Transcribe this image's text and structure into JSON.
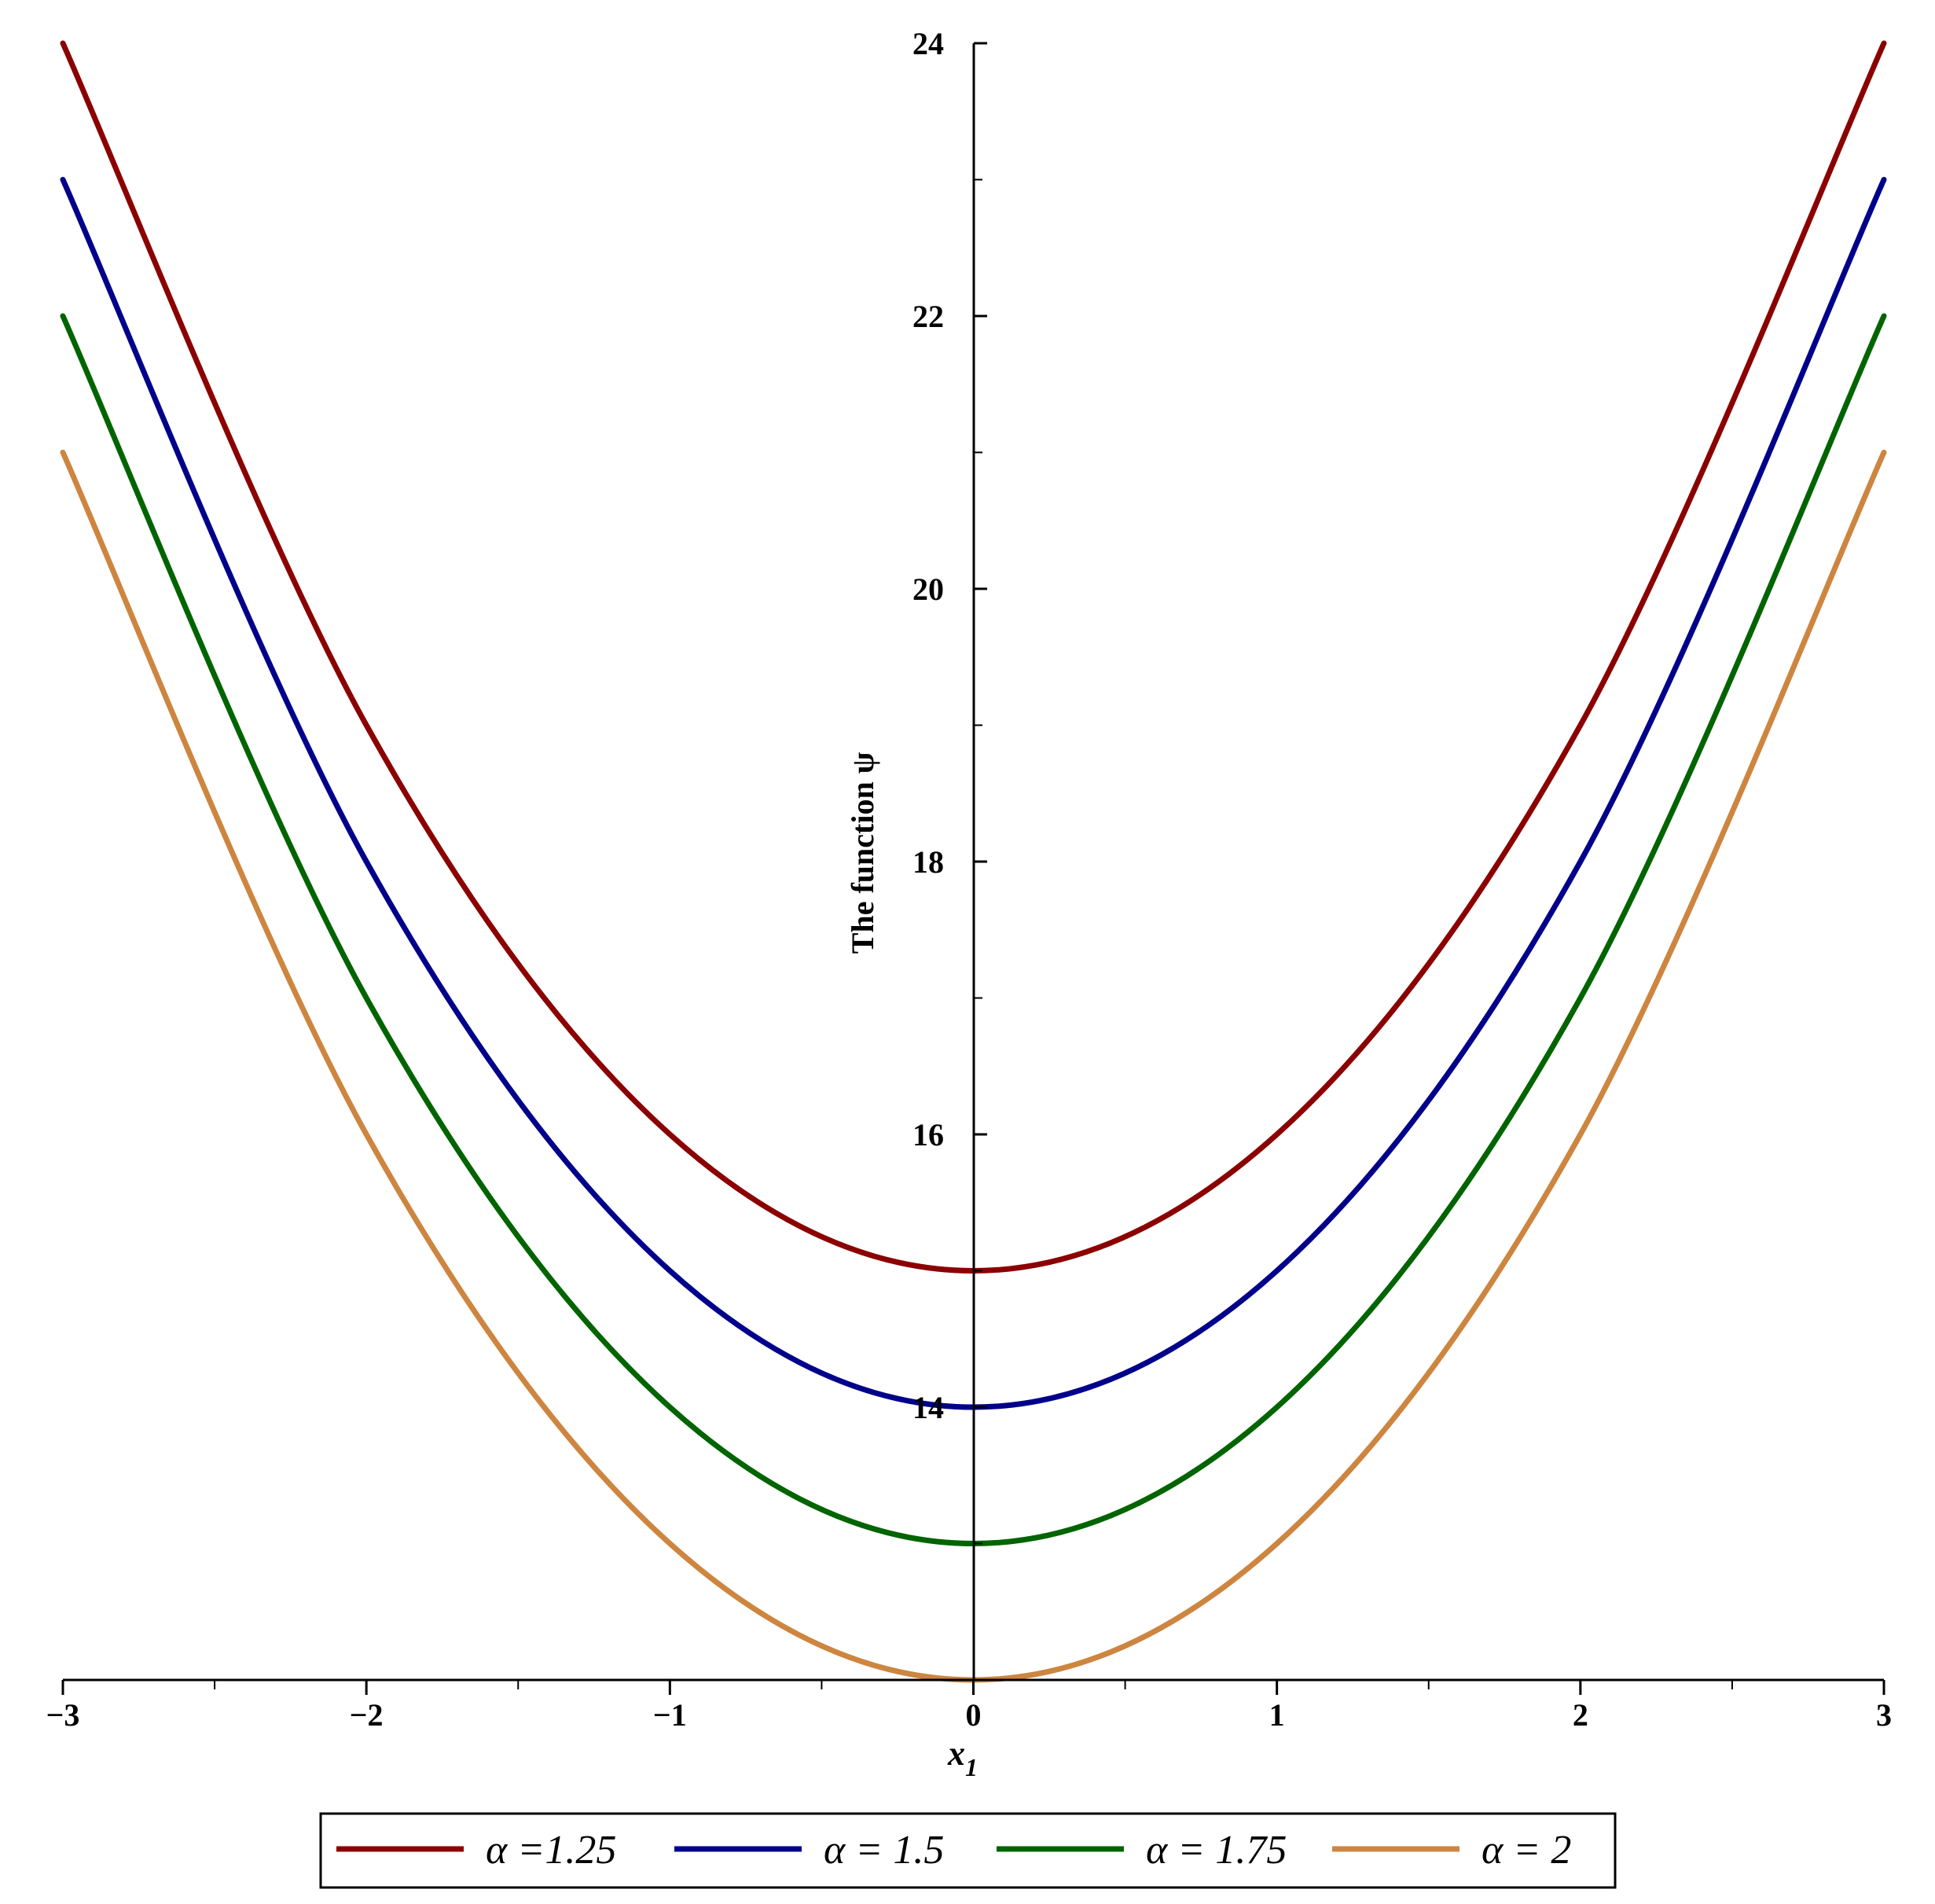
{
  "chart_data": {
    "type": "line",
    "title": "",
    "xlabel": "x",
    "xlabel_sub": "1",
    "ylabel": "The function ψ",
    "xlim": [
      -3,
      3
    ],
    "ylim": [
      12,
      24
    ],
    "x_ticks": [
      {
        "value": -3,
        "label": "−3"
      },
      {
        "value": -2,
        "label": "−2"
      },
      {
        "value": -1,
        "label": "−1"
      },
      {
        "value": 0,
        "label": "0"
      },
      {
        "value": 1,
        "label": "1"
      },
      {
        "value": 2,
        "label": "2"
      },
      {
        "value": 3,
        "label": "3"
      }
    ],
    "x_minor_ticks": [
      -2.5,
      -1.5,
      -0.5,
      0.5,
      1.5,
      2.5
    ],
    "y_ticks": [
      {
        "value": 14,
        "label": "14"
      },
      {
        "value": 16,
        "label": "16"
      },
      {
        "value": 18,
        "label": "18"
      },
      {
        "value": 20,
        "label": "20"
      },
      {
        "value": 22,
        "label": "22"
      },
      {
        "value": 24,
        "label": "24"
      }
    ],
    "y_minor_ticks": [
      13,
      15,
      17,
      19,
      21,
      23
    ],
    "grid": false,
    "legend_position": "bottom",
    "series": [
      {
        "name": "α =1.25",
        "color": "#8b0000",
        "x": [
          -3,
          -2,
          -1,
          0,
          1,
          2,
          3
        ],
        "y": [
          24.0,
          19.0,
          16.0,
          15.0,
          16.0,
          19.0,
          24.0
        ]
      },
      {
        "name": "α = 1.5",
        "color": "#00008b",
        "x": [
          -3,
          -2,
          -1,
          0,
          1,
          2,
          3
        ],
        "y": [
          23.0,
          18.0,
          15.0,
          14.0,
          15.0,
          18.0,
          23.0
        ]
      },
      {
        "name": "α = 1.75",
        "color": "#006400",
        "x": [
          -3,
          -2,
          -1,
          0,
          1,
          2,
          3
        ],
        "y": [
          22.0,
          17.0,
          14.0,
          13.0,
          14.0,
          17.0,
          22.0
        ]
      },
      {
        "name": "α = 2",
        "color": "#cd853f",
        "x": [
          -3,
          -2,
          -1,
          0,
          1,
          2,
          3
        ],
        "y": [
          21.0,
          16.0,
          13.0,
          12.0,
          13.0,
          16.0,
          21.0
        ]
      }
    ]
  }
}
